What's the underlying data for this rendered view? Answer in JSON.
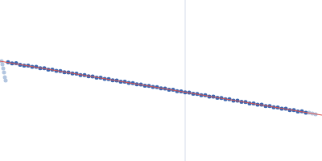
{
  "chart_data": {
    "type": "scatter",
    "tick_labels": false,
    "grid": false,
    "xlim": [
      0,
      400
    ],
    "ylim": [
      0,
      200
    ],
    "xticks": [],
    "yticks": [],
    "vline_x": 230,
    "series": [
      {
        "type": "scatter",
        "color": "#b3c6e0",
        "marker": "circle",
        "x": [
          2,
          3,
          4,
          5,
          6,
          7
        ],
        "values": [
          124,
          120,
          115,
          110,
          104,
          100
        ]
      },
      {
        "type": "scatter",
        "color": "#3a66b0",
        "marker": "circle",
        "x": [
          10,
          15,
          20,
          25,
          30,
          35,
          40,
          45,
          50,
          55,
          60,
          65,
          70,
          75,
          80,
          85,
          90,
          95,
          100,
          105,
          110,
          115,
          120,
          125,
          130,
          135,
          140,
          145,
          150,
          155,
          160,
          165,
          170,
          175,
          180,
          185,
          190,
          195,
          200,
          205,
          210,
          215,
          220,
          225,
          230,
          235,
          240,
          245,
          250,
          255,
          260,
          265,
          270,
          275,
          280,
          285,
          290,
          295,
          300,
          305,
          310,
          315,
          320,
          325,
          330,
          335,
          340,
          345,
          350,
          355,
          360,
          365,
          370,
          375,
          380
        ],
        "values": [
          122.8,
          121.2,
          121.4,
          119.5,
          118.6,
          118.5,
          117.0,
          116.9,
          115.2,
          115.3,
          113.5,
          113.4,
          112.0,
          111.8,
          110.2,
          110.1,
          108.7,
          108.4,
          106.8,
          106.7,
          105.3,
          105.0,
          103.6,
          103.4,
          101.9,
          101.7,
          100.3,
          100.0,
          98.6,
          98.4,
          96.9,
          96.7,
          95.2,
          95.0,
          93.6,
          93.3,
          91.9,
          91.7,
          90.2,
          90.0,
          88.5,
          88.4,
          86.8,
          86.6,
          85.3,
          85.1,
          83.4,
          83.3,
          81.8,
          81.7,
          80.1,
          80.0,
          78.4,
          78.3,
          76.8,
          76.7,
          75.0,
          75.0,
          73.4,
          73.3,
          71.6,
          71.6,
          70.0,
          70.1,
          68.3,
          68.3,
          66.7,
          66.6,
          65.0,
          65.0,
          63.3,
          63.3,
          61.6,
          61.7,
          60.1
        ]
      },
      {
        "type": "scatter",
        "color": "#b3c6e0",
        "marker": "circle",
        "x": [
          384,
          388,
          392
        ],
        "values": [
          60,
          59,
          58
        ]
      },
      {
        "type": "line",
        "color": "#d9534f",
        "line_style": "solid",
        "x": [
          0,
          400
        ],
        "values": [
          124,
          57
        ]
      }
    ]
  }
}
